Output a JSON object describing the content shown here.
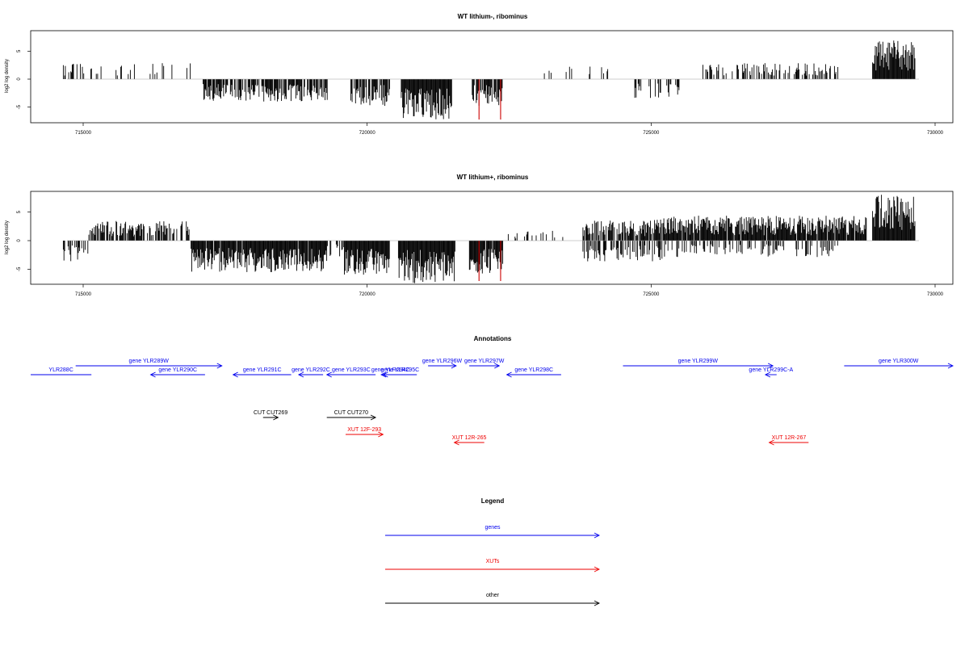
{
  "chart_data": [
    {
      "type": "bar",
      "title": "WT lithium-, ribominus",
      "ylabel": "log2 log density",
      "xlim": [
        714000,
        730600
      ],
      "ylim": [
        -8.5,
        10
      ],
      "x_ticks": [
        "715000",
        "720000",
        "725000",
        "730000"
      ],
      "y_ticks": [
        "5",
        "0",
        "-5"
      ],
      "grid": false,
      "highlight_color": "#cc0000",
      "highlight_x": [
        721970,
        722350
      ],
      "signal": {
        "bins": [
          {
            "x": [
              714650,
              715050
            ],
            "amp": 2.5,
            "density": 0.25
          },
          {
            "x": [
              715050,
              716900
            ],
            "amp": 2.5,
            "density": 0.15
          },
          {
            "x": [
              717100,
              719300
            ],
            "amp": -3.5,
            "density": 0.7
          },
          {
            "x": [
              719700,
              720400
            ],
            "amp": -4.2,
            "density": 0.9
          },
          {
            "x": [
              720600,
              721500
            ],
            "amp": -6.5,
            "density": 1.0
          },
          {
            "x": [
              721850,
              722400
            ],
            "amp": -4.2,
            "density": 0.8
          },
          {
            "x": [
              723000,
              724500
            ],
            "amp": 2.0,
            "density": 0.1
          },
          {
            "x": [
              724700,
              725500
            ],
            "amp": -3.0,
            "density": 0.4
          },
          {
            "x": [
              725900,
              728300
            ],
            "amp": 2.5,
            "density": 0.45
          },
          {
            "x": [
              728900,
              729650
            ],
            "amp": 6.0,
            "density": 1.0
          }
        ]
      }
    },
    {
      "type": "bar",
      "title": "WT lithium+, ribominus",
      "ylabel": "log2 log density",
      "xlim": [
        714000,
        730600
      ],
      "ylim": [
        -8.5,
        10
      ],
      "x_ticks": [
        "715000",
        "720000",
        "725000",
        "730000"
      ],
      "y_ticks": [
        "5",
        "0",
        "-5"
      ],
      "grid": false,
      "highlight_color": "#cc0000",
      "highlight_x": [
        721970,
        722350
      ],
      "signal": {
        "bins": [
          {
            "x": [
              714650,
              715100
            ],
            "amp": -3.2,
            "density": 0.6
          },
          {
            "x": [
              715100,
              716900
            ],
            "amp": 3.0,
            "density": 0.65
          },
          {
            "x": [
              716900,
              719300
            ],
            "amp": -4.8,
            "density": 0.95
          },
          {
            "x": [
              719300,
              719600
            ],
            "amp": -2.5,
            "density": 0.3
          },
          {
            "x": [
              719600,
              720400
            ],
            "amp": -5.2,
            "density": 1.0
          },
          {
            "x": [
              720550,
              721550
            ],
            "amp": -6.5,
            "density": 1.0
          },
          {
            "x": [
              721800,
              722400
            ],
            "amp": -5.0,
            "density": 0.9
          },
          {
            "x": [
              722400,
              723600
            ],
            "amp": 1.5,
            "density": 0.15
          },
          {
            "x": [
              723800,
              725200
            ],
            "amp": 3.2,
            "density": 0.8
          },
          {
            "x": [
              723800,
              725200
            ],
            "amp": -3.2,
            "density": 0.6
          },
          {
            "x": [
              725200,
              728800
            ],
            "amp": 3.8,
            "density": 0.95
          },
          {
            "x": [
              725200,
              728300
            ],
            "amp": -2.5,
            "density": 0.35
          },
          {
            "x": [
              728900,
              729650
            ],
            "amp": 7.0,
            "density": 1.0
          }
        ]
      }
    }
  ],
  "annotations": {
    "title": "Annotations",
    "colors": {
      "gene": "#0000ee",
      "xut": "#ee0000",
      "other": "#000000"
    },
    "features": [
      {
        "label": "YLR288C",
        "class": "gene",
        "start": 714000,
        "end": 715620,
        "strand": "none",
        "row": 1
      },
      {
        "label": "gene YLR289W",
        "class": "gene",
        "start": 715200,
        "end": 719100,
        "strand": "+",
        "row": 0
      },
      {
        "label": "gene YLR290C",
        "class": "gene",
        "start": 717200,
        "end": 718650,
        "strand": "-",
        "row": 1
      },
      {
        "label": "gene YLR291C",
        "class": "gene",
        "start": 719400,
        "end": 720950,
        "strand": "-",
        "row": 1
      },
      {
        "label": "gene YLR292C",
        "class": "gene",
        "start": 721150,
        "end": 721800,
        "strand": "-",
        "row": 1
      },
      {
        "label": "gene YLR293C",
        "class": "gene",
        "start": 721900,
        "end": 723200,
        "strand": "-",
        "row": 1
      },
      {
        "label": "gene YLR294C",
        "class": "gene",
        "start": 723350,
        "end": 723850,
        "strand": "-",
        "row": 1
      },
      {
        "label": "gene YLR295C",
        "class": "gene",
        "start": 723400,
        "end": 724300,
        "strand": "-",
        "row": 1
      },
      {
        "label": "gene YLR296W",
        "class": "gene",
        "start": 724600,
        "end": 725350,
        "strand": "+",
        "row": 0
      },
      {
        "label": "gene YLR297W",
        "class": "gene",
        "start": 725700,
        "end": 726500,
        "strand": "+",
        "row": 0
      },
      {
        "label": "gene YLR298C",
        "class": "gene",
        "start": 726700,
        "end": 728150,
        "strand": "-",
        "row": 1
      },
      {
        "label": "gene YLR299W",
        "class": "gene",
        "start": 729800,
        "end": 733800,
        "strand": "+",
        "row": 0
      },
      {
        "label": "gene YLR299C-A",
        "class": "gene",
        "start": 733600,
        "end": 733900,
        "strand": "-",
        "row": 1
      },
      {
        "label": "gene YLR300W",
        "class": "gene",
        "start": 735700,
        "end": 738600,
        "strand": "+",
        "row": 0
      },
      {
        "label": "CUT CUT269",
        "class": "other",
        "start": 720200,
        "end": 720600,
        "strand": "+",
        "row": 0
      },
      {
        "label": "CUT CUT270",
        "class": "other",
        "start": 721900,
        "end": 723200,
        "strand": "+",
        "row": 0
      },
      {
        "label": "XUT 12F-293",
        "class": "xut",
        "start": 722400,
        "end": 723400,
        "strand": "+",
        "row": 1
      },
      {
        "label": "XUT 12R-265",
        "class": "xut",
        "start": 725300,
        "end": 726100,
        "strand": "-",
        "row": 2
      },
      {
        "label": "XUT 12R-267",
        "class": "xut",
        "start": 733700,
        "end": 734750,
        "strand": "-",
        "row": 2
      }
    ]
  },
  "legend": {
    "title": "Legend",
    "items": [
      {
        "label": "genes",
        "color": "#0000ee"
      },
      {
        "label": "XUTs",
        "color": "#ee0000"
      },
      {
        "label": "other",
        "color": "#000000"
      }
    ]
  }
}
